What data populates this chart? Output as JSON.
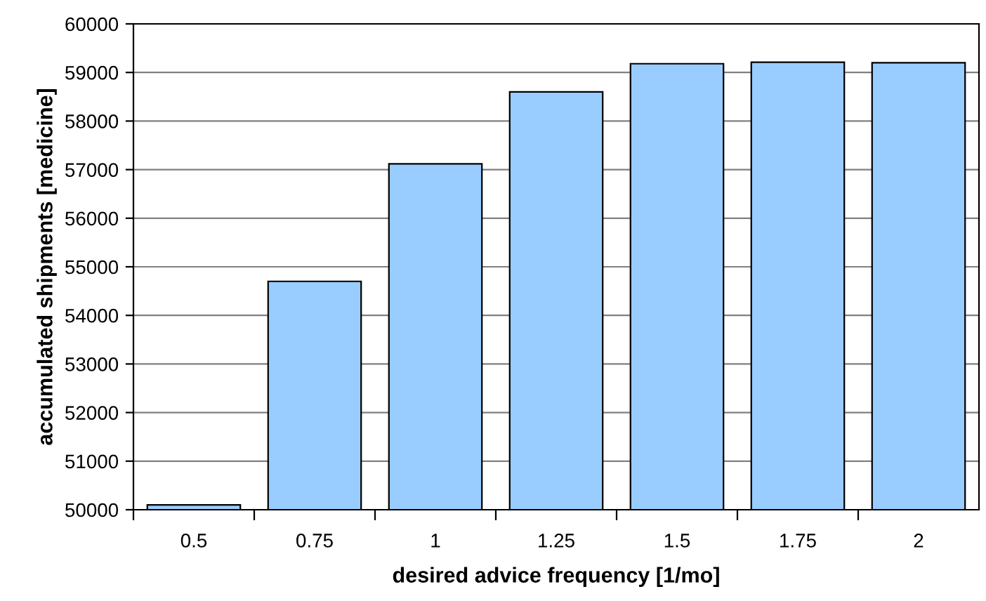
{
  "chart_data": {
    "type": "bar",
    "xlabel": "desired advice frequency [1/mo]",
    "ylabel": "accumulated shipments [medicine]",
    "categories": [
      "0.5",
      "0.75",
      "1",
      "1.25",
      "1.5",
      "1.75",
      "2"
    ],
    "values": [
      50100,
      54700,
      57120,
      58600,
      59180,
      59210,
      59200
    ],
    "color": "#99ccff",
    "ylim": [
      50000,
      60000
    ],
    "yticks": [
      50000,
      51000,
      52000,
      53000,
      54000,
      55000,
      56000,
      57000,
      58000,
      59000,
      60000
    ],
    "grid": "y"
  }
}
